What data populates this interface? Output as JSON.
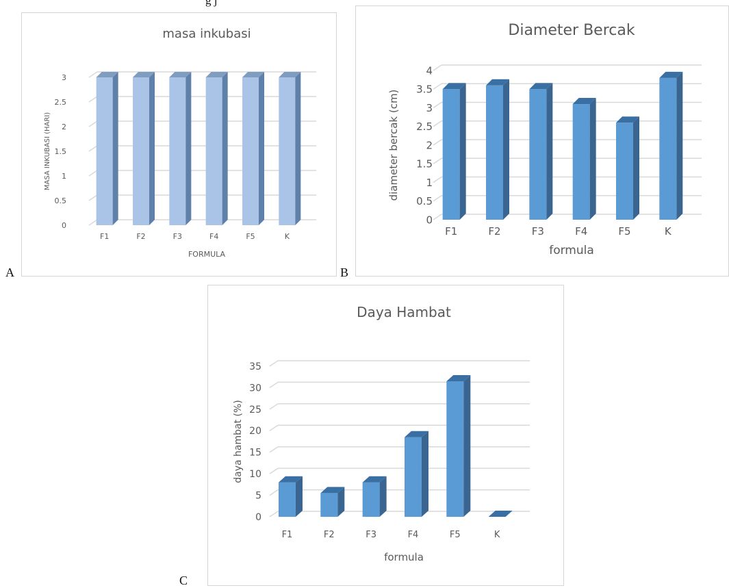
{
  "figure": {
    "top_caption": "g                              j",
    "panel_letters": [
      "A",
      "B",
      "C"
    ]
  },
  "colors": {
    "bar_light_front": "#a9c4e6",
    "bar_light_top": "#7f9cc1",
    "bar_light_side": "#5f80a8",
    "bar_front": "#5b9bd5",
    "bar_top": "#3a6fa3",
    "bar_side": "#3a6591",
    "gridline": "#d9d9d9",
    "text": "#595959",
    "title": "#595959"
  },
  "chart_data": [
    {
      "type": "bar",
      "title": "masa inkubasi",
      "xlabel": "FORMULA",
      "ylabel": "MASA INKUBASI (HARI)",
      "categories": [
        "F1",
        "F2",
        "F3",
        "F4",
        "F5",
        "K"
      ],
      "values": [
        3,
        3,
        3,
        3,
        3,
        3
      ],
      "ylim": [
        0,
        3
      ],
      "yticks": [
        "0",
        "0.5",
        "1",
        "1.5",
        "2",
        "2.5",
        "3"
      ],
      "grid": true,
      "style": "3d-column"
    },
    {
      "type": "bar",
      "title": "Diameter Bercak",
      "xlabel": "formula",
      "ylabel": "diameter bercak (cm)",
      "categories": [
        "F1",
        "F2",
        "F3",
        "F4",
        "F5",
        "K"
      ],
      "values": [
        3.5,
        3.6,
        3.5,
        3.1,
        2.6,
        3.8
      ],
      "ylim": [
        0,
        4
      ],
      "yticks": [
        "0",
        "0.5",
        "1",
        "1.5",
        "2",
        "2.5",
        "3",
        "3.5",
        "4"
      ],
      "grid": true,
      "style": "3d-column"
    },
    {
      "type": "bar",
      "title": "Daya Hambat",
      "xlabel": "formula",
      "ylabel": "daya hambat (%)",
      "categories": [
        "F1",
        "F2",
        "F3",
        "F4",
        "F5",
        "K"
      ],
      "values": [
        8,
        5.5,
        8,
        18.5,
        31.5,
        0
      ],
      "ylim": [
        0,
        35
      ],
      "yticks": [
        "0",
        "5",
        "10",
        "15",
        "20",
        "25",
        "30",
        "35"
      ],
      "grid": true,
      "style": "3d-column"
    }
  ]
}
